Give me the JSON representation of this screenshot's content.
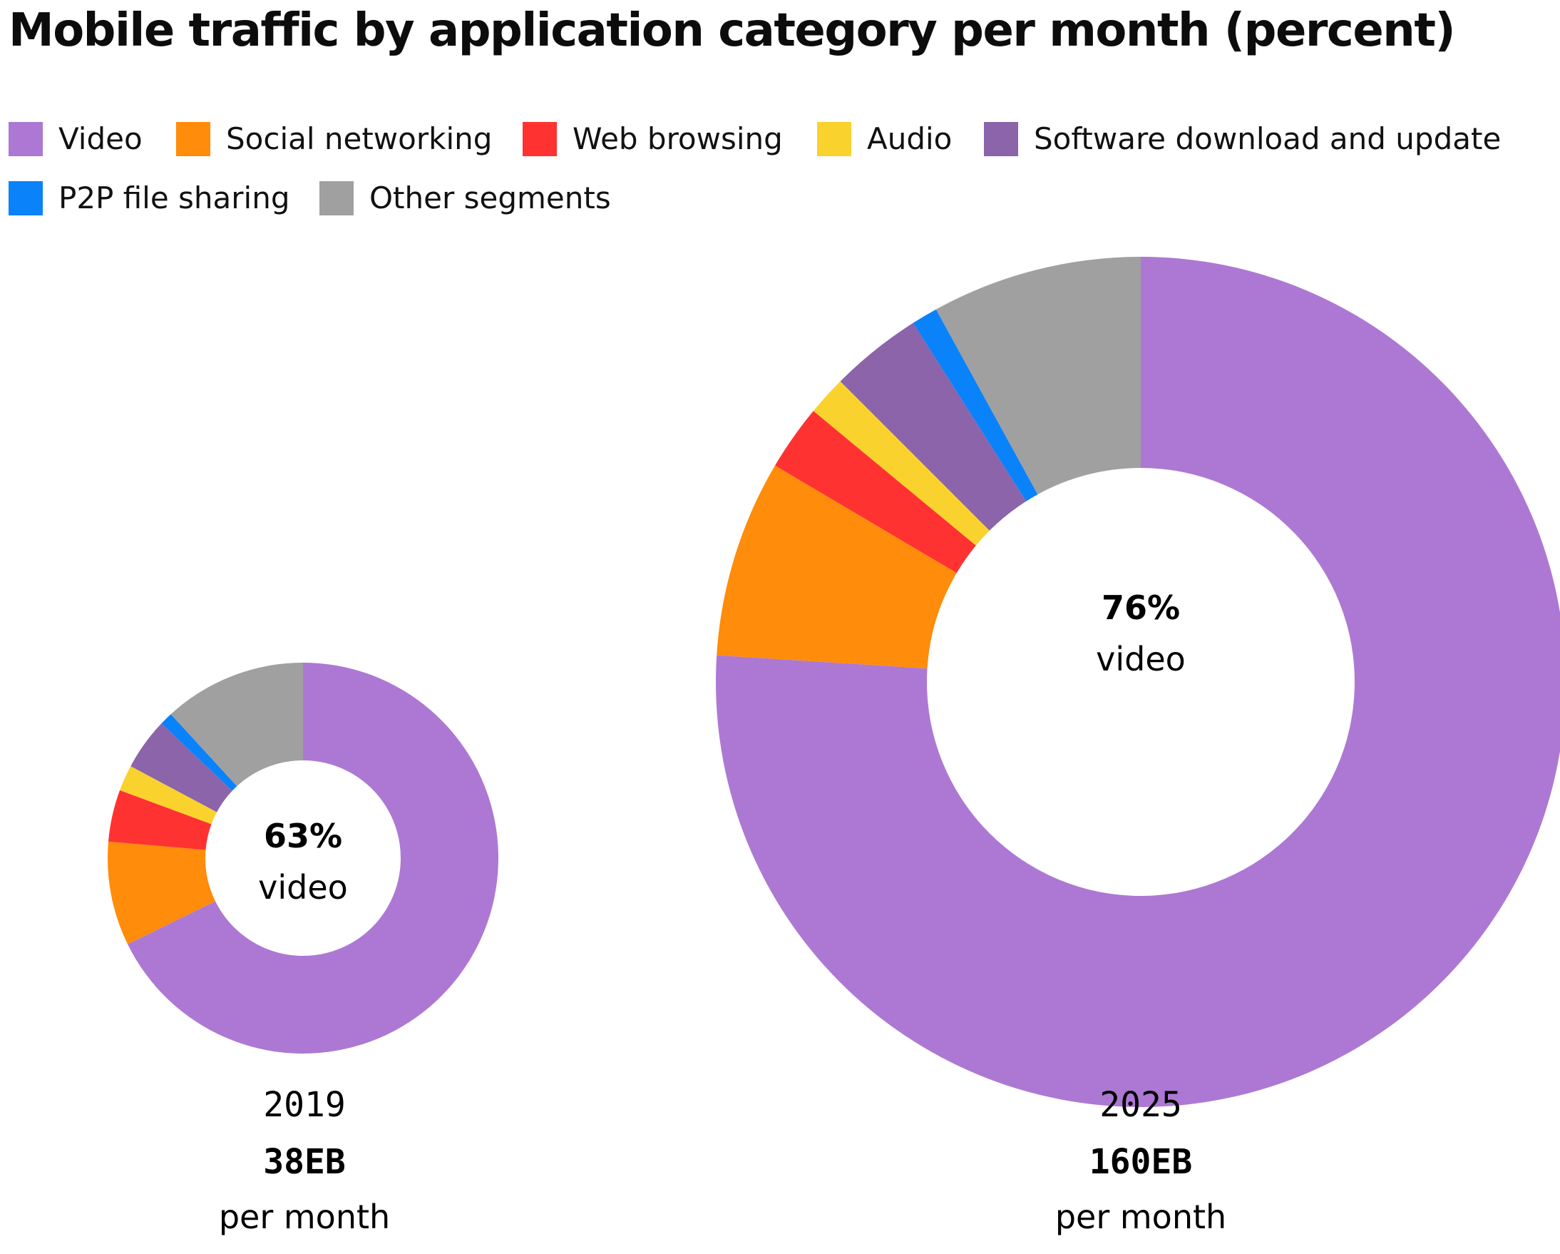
{
  "title": "Mobile traffic by application category per month (percent)",
  "legend": [
    {
      "label": "Video",
      "color": "#ad78d3"
    },
    {
      "label": "Social networking",
      "color": "#ff8c0a"
    },
    {
      "label": "Web browsing",
      "color": "#ff3232"
    },
    {
      "label": "Audio",
      "color": "#fad22d"
    },
    {
      "label": "Software download and update",
      "color": "#8c64aa"
    },
    {
      "label": "P2P file sharing",
      "color": "#0a82fa"
    },
    {
      "label": "Other segments",
      "color": "#a0a0a0"
    }
  ],
  "chart_data": [
    {
      "type": "pie",
      "variant": "donut",
      "year": "2019",
      "volume": "38EB",
      "unit": "per month",
      "center_value": "63%",
      "center_label": "video",
      "categories": [
        "Video",
        "Social networking",
        "Web browsing",
        "Audio",
        "Software download and update",
        "P2P file sharing",
        "Other segments"
      ],
      "values": [
        63,
        8,
        4,
        2,
        4,
        1,
        11
      ],
      "start": "12 o'clock",
      "direction": "clockwise"
    },
    {
      "type": "pie",
      "variant": "donut",
      "year": "2025",
      "volume": "160EB",
      "unit": "per month",
      "center_value": "76%",
      "center_label": "video",
      "categories": [
        "Video",
        "Social networking",
        "Web browsing",
        "Audio",
        "Software download and update",
        "P2P file sharing",
        "Other segments"
      ],
      "values": [
        76,
        7.5,
        2.5,
        1.5,
        3.5,
        1,
        8
      ],
      "start": "12 o'clock",
      "direction": "clockwise"
    }
  ]
}
